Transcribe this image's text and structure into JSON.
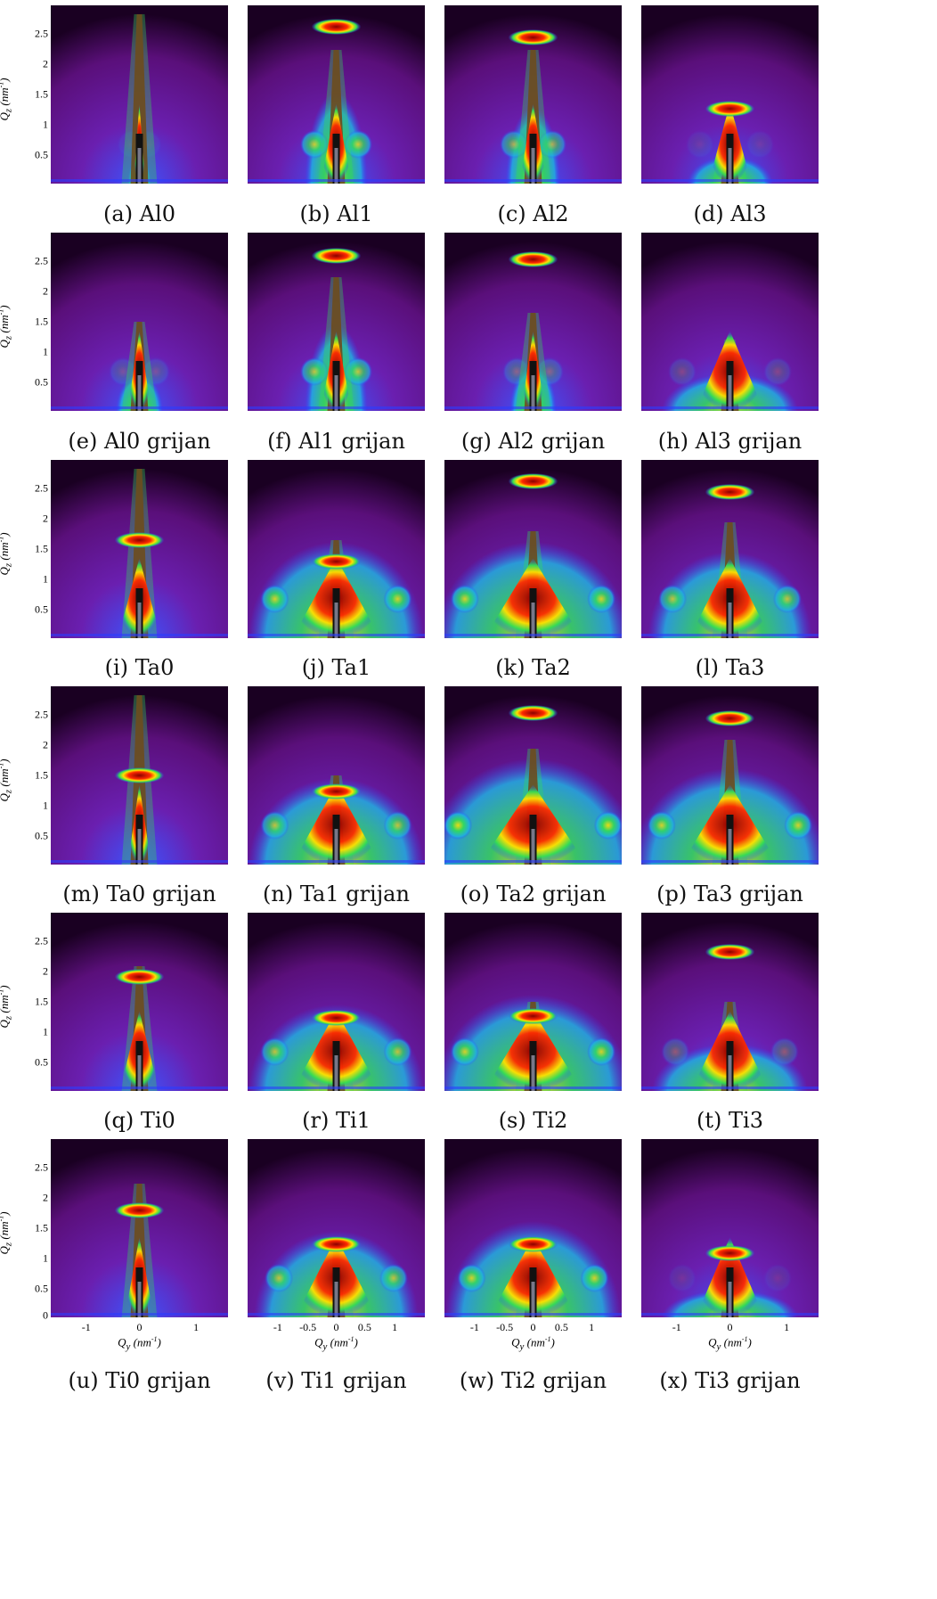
{
  "axis": {
    "ylabel": "Q_z (nm^-1)",
    "xlabel": "Q_y (nm^-1)",
    "yticks": [
      "2.5",
      "2",
      "1.5",
      "1",
      "0.5"
    ],
    "yticks_last": [
      "2.5",
      "2",
      "1.5",
      "1",
      "0.5",
      "0"
    ],
    "xticks_a": [
      "-1",
      "0",
      "1"
    ],
    "xticks_b": [
      "-1",
      "-0.5",
      "0",
      "0.5",
      "1"
    ]
  },
  "captions": [
    "(a) Al0",
    "(b) Al1",
    "(c) Al2",
    "(d) Al3",
    "(e) Al0 grijan",
    "(f) Al1 grijan",
    "(g) Al2 grijan",
    "(h) Al3 grijan",
    "(i) Ta0",
    "(j) Ta1",
    "(k) Ta2",
    "(l) Ta3",
    "(m) Ta0 grijan",
    "(n) Ta1 grijan",
    "(o) Ta2 grijan",
    "(p) Ta3 grijan",
    "(q) Ti0",
    "(r) Ti1",
    "(s) Ti2",
    "(t) Ti3",
    "(u) Ti0 grijan",
    "(v) Ti1 grijan",
    "(w) Ti2 grijan",
    "(x) Ti3 grijan"
  ],
  "colors": {
    "background": "#5a0f7a",
    "low": "#2a4bff",
    "mid": "#33dd55",
    "high": "#ffe000",
    "peak": "#8b0000"
  }
}
